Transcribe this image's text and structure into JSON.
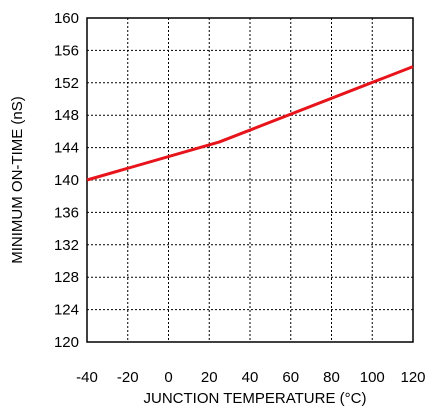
{
  "chart_data": {
    "type": "line",
    "title": "",
    "xlabel": "JUNCTION TEMPERATURE (°C)",
    "ylabel": "MINIMUM ON-TIME (nS)",
    "xlim": [
      -40,
      120
    ],
    "ylim": [
      120,
      160
    ],
    "xticks": [
      "-40",
      "-20",
      "0",
      "20",
      "40",
      "60",
      "80",
      "100",
      "120"
    ],
    "yticks": [
      "120",
      "124",
      "128",
      "132",
      "136",
      "140",
      "144",
      "148",
      "152",
      "156",
      "160"
    ],
    "grid": true,
    "line_color": "#e8141b",
    "series": [
      {
        "x": [
          -40,
          25,
          120
        ],
        "y": [
          140.0,
          144.7,
          154.0
        ]
      }
    ]
  }
}
